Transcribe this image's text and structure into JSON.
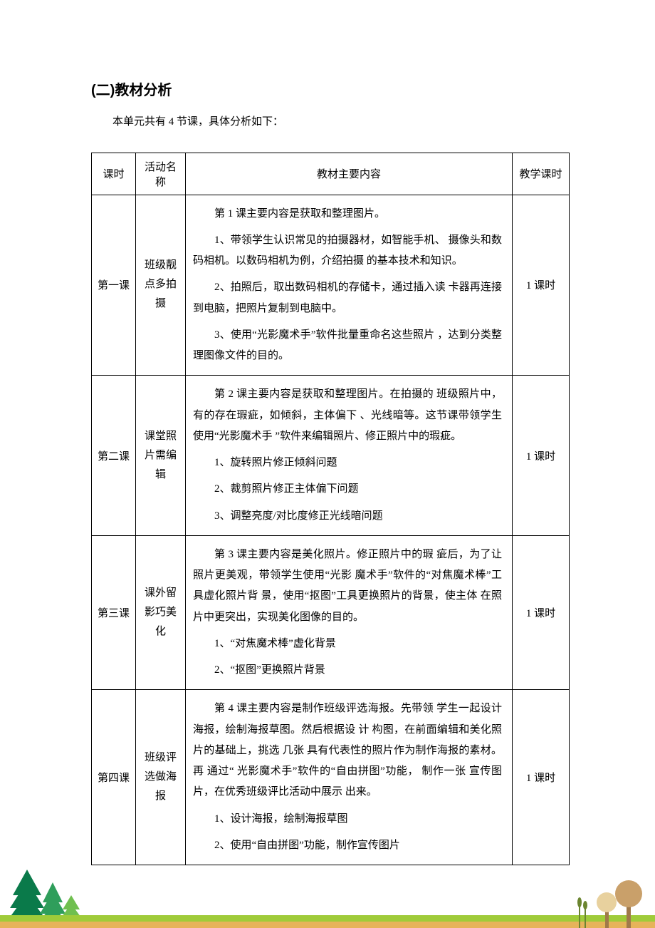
{
  "heading": "(二)教材分析",
  "intro": "本单元共有 4 节课，具体分析如下：",
  "headers": {
    "lesson": "课时",
    "activity": "活动名称",
    "content": "教材主要内容",
    "hours": "教学课时"
  },
  "rows": [
    {
      "lesson": "第一课",
      "activity": "班级靓点多拍摄",
      "hours": "1 课时",
      "paras": [
        "第 1 课主要内容是获取和整理图片。",
        "1、带领学生认识常见的拍摄器材，如智能手机、   摄像头和数码相机。以数码相机为例，介绍拍摄 的基本技术和知识。",
        "2、拍照后，取出数码相机的存储卡，通过插入读 卡器再连接到电脑，把照片复制到电脑中。",
        "3、使用“光影魔术手”软件批量重命名这些照片 ，达到分类整理图像文件的目的。"
      ]
    },
    {
      "lesson": "第二课",
      "activity": "课堂照片需编辑",
      "hours": "1 课时",
      "paras": [
        "第 2 课主要内容是获取和整理图片。在拍摄的 班级照片中，有的存在瑕疵，如倾斜，主体偏下 、光线暗等。这节课带领学生使用“光影魔术手 ”软件来编辑照片、修正照片中的瑕疵。",
        "1、旋转照片修正倾斜问题",
        "2、裁剪照片修正主体偏下问题",
        "3、调整亮度/对比度修正光线暗问题"
      ]
    },
    {
      "lesson": "第三课",
      "activity": "课外留影巧美化",
      "hours": "1 课时",
      "paras": [
        "第 3 课主要内容是美化照片。修正照片中的瑕 疵后，为了让照片更美观，带领学生使用“光影 魔术手”软件的“对焦魔术棒”工具虚化照片背 景，使用“抠图”工具更换照片的背景，使主体 在照片中更突出，实现美化图像的目的。",
        "1、“对焦魔术棒”虚化背景",
        "2、“抠图”更换照片背景"
      ]
    },
    {
      "lesson": "第四课",
      "activity": "班级评选做海报",
      "hours": "1 课时",
      "paras": [
        "第 4 课主要内容是制作班级评选海报。先带领 学生一起设计海报，绘制海报草图。然后根据设 计 构图，在前面编辑和美化照片的基础上，挑选 几张 具有代表性的照片作为制作海报的素材。再 通过“ 光影魔术手”软件的“自由拼图”功能，  制作一张 宣传图片，在优秀班级评比活动中展示 出来。",
        "1、设计海报，绘制海报草图",
        "2、使用“自由拼图”功能，制作宣传图片"
      ]
    }
  ],
  "colors": {
    "tree_dark": "#0a7a4a",
    "tree_mid": "#2f9e5b",
    "tree_light": "#6fbf4f",
    "trunk": "#7a4a2a",
    "ground_green": "#9fcb3a",
    "ground_orange": "#e6b35a",
    "lolli_dark": "#c9a06a",
    "lolli_light": "#e8d19e",
    "lolli_stick": "#a0794a",
    "cattail": "#6b8530"
  }
}
